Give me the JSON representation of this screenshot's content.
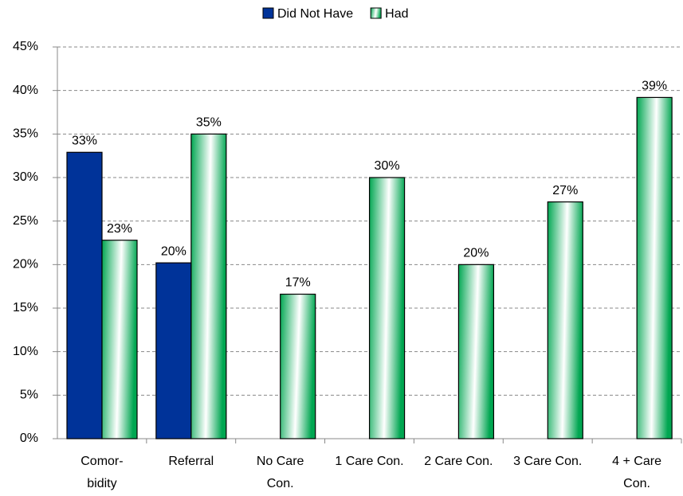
{
  "chart_data": {
    "type": "bar",
    "categories": [
      "Comor-\nbidity",
      "Referral",
      "No Care\nCon.",
      "1 Care Con.",
      "2 Care Con.",
      "3 Care Con.",
      "4 + Care\nCon."
    ],
    "series": [
      {
        "name": "Did Not Have",
        "color": "#003399",
        "values": [
          32.9,
          20.2,
          null,
          null,
          null,
          null,
          null
        ],
        "value_labels": [
          "33%",
          "20%",
          null,
          null,
          null,
          null,
          null
        ]
      },
      {
        "name": "Had",
        "color": "#00a651",
        "values": [
          22.8,
          35,
          16.6,
          30,
          20,
          27.2,
          39.2
        ],
        "value_labels": [
          "23%",
          "35%",
          "17%",
          "30%",
          "20%",
          "27%",
          "39%"
        ]
      }
    ],
    "ylim": [
      0,
      45
    ],
    "yticks": [
      {
        "value": 0,
        "label": "0%"
      },
      {
        "value": 5,
        "label": "5%"
      },
      {
        "value": 10,
        "label": "10%"
      },
      {
        "value": 15,
        "label": "15%"
      },
      {
        "value": 20,
        "label": "20%"
      },
      {
        "value": 25,
        "label": "25%"
      },
      {
        "value": 30,
        "label": "30%"
      },
      {
        "value": 35,
        "label": "35%"
      },
      {
        "value": 40,
        "label": "40%"
      },
      {
        "value": 45,
        "label": "45%"
      }
    ],
    "grid": true,
    "legend": "top"
  }
}
